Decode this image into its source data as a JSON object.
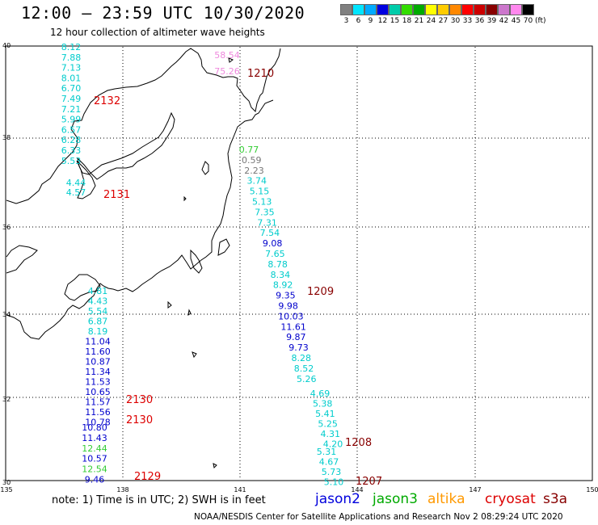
{
  "header": {
    "title": "12:00 – 23:59 UTC 10/30/2020",
    "subtitle": "12 hour collection of altimeter wave heights"
  },
  "color_scale": {
    "swatches": [
      "#808080",
      "#00e5ff",
      "#00aaff",
      "#0000e0",
      "#00ccaa",
      "#33dd00",
      "#00aa00",
      "#ffff00",
      "#ffcc00",
      "#ff8800",
      "#ff0000",
      "#cc0000",
      "#880000",
      "#cc77cc",
      "#ff88ee",
      "#000000"
    ],
    "labels": [
      "3",
      "6",
      "9",
      "12",
      "15",
      "18",
      "21",
      "24",
      "27",
      "30",
      "33",
      "36",
      "39",
      "42",
      "45",
      "70"
    ],
    "unit": "(ft)"
  },
  "map": {
    "lat_labels": [
      "40",
      "38",
      "36",
      "34",
      "32",
      "30"
    ],
    "lon_labels": [
      "135",
      "138",
      "141",
      "144",
      "147",
      "150"
    ]
  },
  "tracks": [
    {
      "time": "2132",
      "values": [
        {
          "v": "8.12",
          "c": "#00cccc"
        },
        {
          "v": "7.88",
          "c": "#00cccc"
        },
        {
          "v": "7.13",
          "c": "#00cccc"
        },
        {
          "v": "8.01",
          "c": "#00cccc"
        },
        {
          "v": "6.70",
          "c": "#00cccc"
        },
        {
          "v": "7.49",
          "c": "#00cccc"
        },
        {
          "v": "7.21",
          "c": "#00cccc"
        },
        {
          "v": "5.99",
          "c": "#00cccc"
        },
        {
          "v": "6.57",
          "c": "#00cccc"
        },
        {
          "v": "6.28",
          "c": "#00cccc"
        },
        {
          "v": "6.33",
          "c": "#00cccc"
        },
        {
          "v": "5.53",
          "c": "#00cccc"
        }
      ]
    },
    {
      "time": "2131",
      "values": [
        {
          "v": "4.44",
          "c": "#00cccc"
        },
        {
          "v": "4.57",
          "c": "#00cccc"
        }
      ]
    },
    {
      "time": "1210",
      "values": [
        {
          "v": "58.54",
          "c": "#ee88dd"
        },
        {
          "v": "75.26",
          "c": "#ee88dd"
        }
      ]
    },
    {
      "time": "1209",
      "values": [
        {
          "v": "0.77",
          "c": "#33cc33"
        },
        {
          "v": "0.59",
          "c": "#777777"
        },
        {
          "v": "2.23",
          "c": "#777777"
        },
        {
          "v": "3.74",
          "c": "#00cccc"
        },
        {
          "v": "5.15",
          "c": "#00cccc"
        },
        {
          "v": "5.13",
          "c": "#00cccc"
        },
        {
          "v": "7.35",
          "c": "#00cccc"
        },
        {
          "v": "7.31",
          "c": "#00cccc"
        },
        {
          "v": "7.54",
          "c": "#00cccc"
        },
        {
          "v": "9.08",
          "c": "#0000cc"
        },
        {
          "v": "7.65",
          "c": "#00cccc"
        },
        {
          "v": "8.78",
          "c": "#00cccc"
        },
        {
          "v": "8.34",
          "c": "#00cccc"
        },
        {
          "v": "8.92",
          "c": "#00cccc"
        },
        {
          "v": "9.35",
          "c": "#0000cc"
        },
        {
          "v": "9.98",
          "c": "#0000cc"
        },
        {
          "v": "10.03",
          "c": "#0000cc"
        },
        {
          "v": "11.61",
          "c": "#0000cc"
        },
        {
          "v": "9.87",
          "c": "#0000cc"
        },
        {
          "v": "9.73",
          "c": "#0000cc"
        },
        {
          "v": "8.28",
          "c": "#00cccc"
        },
        {
          "v": "8.52",
          "c": "#00cccc"
        },
        {
          "v": "5.26",
          "c": "#00cccc"
        }
      ]
    },
    {
      "time": "1208",
      "values": [
        {
          "v": "4.69",
          "c": "#00cccc"
        },
        {
          "v": "5.38",
          "c": "#00cccc"
        },
        {
          "v": "5.41",
          "c": "#00cccc"
        },
        {
          "v": "5.25",
          "c": "#00cccc"
        },
        {
          "v": "4.31",
          "c": "#00cccc"
        },
        {
          "v": "4.20",
          "c": "#00cccc"
        }
      ]
    },
    {
      "time": "1207",
      "values": [
        {
          "v": "5.31",
          "c": "#00cccc"
        },
        {
          "v": "4.67",
          "c": "#00cccc"
        },
        {
          "v": "5.73",
          "c": "#00cccc"
        },
        {
          "v": "5.10",
          "c": "#00cccc"
        }
      ]
    },
    {
      "time": "2130",
      "values": [
        {
          "v": "4.81",
          "c": "#00cccc"
        },
        {
          "v": "4.43",
          "c": "#00cccc"
        },
        {
          "v": "5.54",
          "c": "#00cccc"
        },
        {
          "v": "6.87",
          "c": "#00cccc"
        },
        {
          "v": "8.19",
          "c": "#00cccc"
        },
        {
          "v": "11.04",
          "c": "#0000cc"
        },
        {
          "v": "11.60",
          "c": "#0000cc"
        },
        {
          "v": "10.87",
          "c": "#0000cc"
        },
        {
          "v": "11.34",
          "c": "#0000cc"
        },
        {
          "v": "11.53",
          "c": "#0000cc"
        },
        {
          "v": "10.65",
          "c": "#0000cc"
        },
        {
          "v": "11.57",
          "c": "#0000cc"
        },
        {
          "v": "11.56",
          "c": "#0000cc"
        },
        {
          "v": "10.78",
          "c": "#0000cc"
        }
      ]
    },
    {
      "time": "2129",
      "values": [
        {
          "v": "10.80",
          "c": "#0000cc"
        },
        {
          "v": "11.43",
          "c": "#0000cc"
        },
        {
          "v": "12.44",
          "c": "#33cc33"
        },
        {
          "v": "10.57",
          "c": "#0000cc"
        },
        {
          "v": "12.54",
          "c": "#33cc33"
        },
        {
          "v": "9.46",
          "c": "#0000cc"
        }
      ]
    }
  ],
  "time_label_color": "#dd0000",
  "time_label_color_dark": "#880000",
  "footer": {
    "note": "note:  1) Time is in UTC;  2) SWH is in feet",
    "legend": [
      {
        "label": "jason2",
        "color": "#0000dd"
      },
      {
        "label": "jason3",
        "color": "#00aa00"
      },
      {
        "label": "altika",
        "color": "#ff9900"
      },
      {
        "label": "cryosat",
        "color": "#dd0000"
      },
      {
        "label": "s3a",
        "color": "#880000"
      }
    ],
    "credit": "NOAA/NESDIS Center for Satellite Applications and Research    Nov  2 08:29:24 UTC 2020"
  }
}
